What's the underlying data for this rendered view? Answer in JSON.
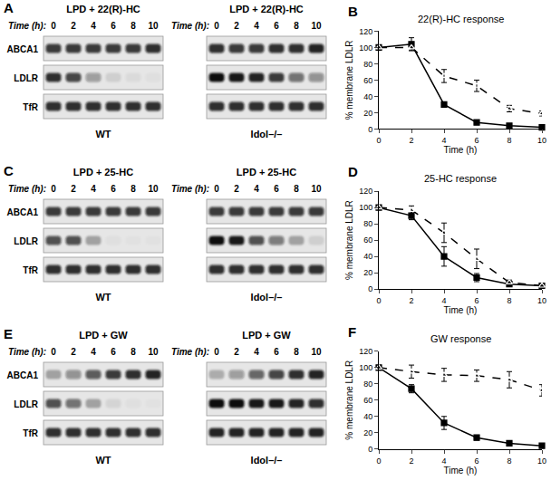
{
  "blots": [
    {
      "letter": "A",
      "time_label": "Time (h):",
      "times": [
        0,
        2,
        4,
        6,
        8,
        10
      ],
      "band_names": [
        "ABCA1",
        "LDLR",
        "TfR"
      ],
      "groups": [
        {
          "treatment": "LPD + 22(R)-HC",
          "genotype": "WT",
          "intensity": [
            [
              0.8,
              0.8,
              0.8,
              0.8,
              0.8,
              0.85
            ],
            [
              0.85,
              0.75,
              0.35,
              0.1,
              0.05,
              0.03
            ],
            [
              0.85,
              0.85,
              0.85,
              0.85,
              0.85,
              0.85
            ]
          ]
        },
        {
          "treatment": "LPD + 22(R)-HC",
          "genotype": "Idol–/–",
          "intensity": [
            [
              0.85,
              0.8,
              0.8,
              0.85,
              0.85,
              0.9
            ],
            [
              1,
              0.95,
              0.9,
              0.8,
              0.55,
              0.4
            ],
            [
              0.85,
              0.85,
              0.85,
              0.85,
              0.85,
              0.85
            ]
          ]
        }
      ]
    },
    {
      "letter": "C",
      "time_label": "Time (h):",
      "times": [
        0,
        2,
        4,
        6,
        8,
        10
      ],
      "band_names": [
        "ABCA1",
        "LDLR",
        "TfR"
      ],
      "groups": [
        {
          "treatment": "LPD + 25-HC",
          "genotype": "WT",
          "intensity": [
            [
              0.8,
              0.8,
              0.8,
              0.8,
              0.8,
              0.8
            ],
            [
              0.7,
              0.7,
              0.3,
              0.03,
              0.02,
              0.02
            ],
            [
              0.85,
              0.85,
              0.85,
              0.85,
              0.85,
              0.85
            ]
          ]
        },
        {
          "treatment": "LPD + 25-HC",
          "genotype": "Idol–/–",
          "intensity": [
            [
              0.8,
              0.8,
              0.8,
              0.8,
              0.8,
              0.8
            ],
            [
              1,
              0.95,
              0.7,
              0.5,
              0.3,
              0.1
            ],
            [
              0.85,
              0.85,
              0.85,
              0.85,
              0.85,
              0.85
            ]
          ]
        }
      ]
    },
    {
      "letter": "E",
      "time_label": "Time (h):",
      "times": [
        0,
        2,
        4,
        6,
        8,
        10
      ],
      "band_names": [
        "ABCA1",
        "LDLR",
        "TfR"
      ],
      "groups": [
        {
          "treatment": "LPD + GW",
          "genotype": "WT",
          "intensity": [
            [
              0.3,
              0.4,
              0.65,
              0.8,
              0.85,
              0.9
            ],
            [
              0.7,
              0.55,
              0.3,
              0.08,
              0.03,
              0.02
            ],
            [
              0.85,
              0.85,
              0.85,
              0.85,
              0.85,
              0.85
            ]
          ]
        },
        {
          "treatment": "LPD + GW",
          "genotype": "Idol–/–",
          "intensity": [
            [
              0.25,
              0.35,
              0.6,
              0.75,
              0.85,
              0.9
            ],
            [
              1,
              1,
              0.95,
              0.95,
              0.9,
              0.85
            ],
            [
              0.9,
              0.9,
              0.9,
              0.9,
              0.9,
              0.9
            ]
          ]
        }
      ]
    }
  ],
  "chart_data": [
    {
      "letter": "B",
      "type": "line",
      "title": "22(R)-HC response",
      "x": [
        0,
        2,
        4,
        6,
        8,
        10
      ],
      "xlabel": "Time (h)",
      "ylabel": "% membrane LDLR",
      "xlim": [
        0,
        10
      ],
      "xticks": [
        0,
        2,
        4,
        6,
        8,
        10
      ],
      "ylim": [
        0,
        120
      ],
      "yticks": [
        0,
        20,
        40,
        60,
        80,
        100,
        120
      ],
      "grid": false,
      "series": [
        {
          "color": "#000000",
          "marker": "square",
          "line_style": "solid",
          "values": [
            100,
            104,
            30,
            8,
            4,
            2
          ],
          "error": [
            0,
            8,
            3,
            2,
            1,
            1
          ]
        },
        {
          "color": "#000000",
          "marker": "triangle-open",
          "line_style": "dashed",
          "values": [
            100,
            100,
            65,
            53,
            25,
            19
          ],
          "error": [
            0,
            3,
            8,
            7,
            4,
            3
          ]
        }
      ]
    },
    {
      "letter": "D",
      "type": "line",
      "title": "25-HC response",
      "x": [
        0,
        2,
        4,
        6,
        8,
        10
      ],
      "xlabel": "Time (h)",
      "ylabel": "% membrane LDLR",
      "xlim": [
        0,
        10
      ],
      "xticks": [
        0,
        2,
        4,
        6,
        8,
        10
      ],
      "ylim": [
        0,
        120
      ],
      "yticks": [
        0,
        20,
        40,
        60,
        80,
        100,
        120
      ],
      "grid": false,
      "series": [
        {
          "color": "#000000",
          "marker": "square",
          "line_style": "solid",
          "values": [
            100,
            90,
            40,
            14,
            6,
            4
          ],
          "error": [
            0,
            5,
            12,
            5,
            2,
            1
          ]
        },
        {
          "color": "#000000",
          "marker": "triangle-open",
          "line_style": "dashed",
          "values": [
            100,
            97,
            69,
            37,
            8,
            4
          ],
          "error": [
            0,
            5,
            12,
            12,
            3,
            2
          ]
        }
      ]
    },
    {
      "letter": "F",
      "type": "line",
      "title": "GW response",
      "x": [
        0,
        2,
        4,
        6,
        8,
        10
      ],
      "xlabel": "Time (h)",
      "ylabel": "% membrane LDLR",
      "xlim": [
        0,
        10
      ],
      "xticks": [
        0,
        2,
        4,
        6,
        8,
        10
      ],
      "ylim": [
        0,
        120
      ],
      "yticks": [
        0,
        20,
        40,
        60,
        80,
        100,
        120
      ],
      "grid": false,
      "series": [
        {
          "color": "#000000",
          "marker": "square",
          "line_style": "solid",
          "values": [
            100,
            74,
            32,
            14,
            7,
            4
          ],
          "error": [
            0,
            5,
            8,
            3,
            2,
            1
          ]
        },
        {
          "color": "#000000",
          "marker": "triangle-open",
          "line_style": "dashed",
          "values": [
            100,
            95,
            91,
            90,
            85,
            72
          ],
          "error": [
            0,
            8,
            8,
            7,
            10,
            7
          ]
        }
      ]
    }
  ]
}
